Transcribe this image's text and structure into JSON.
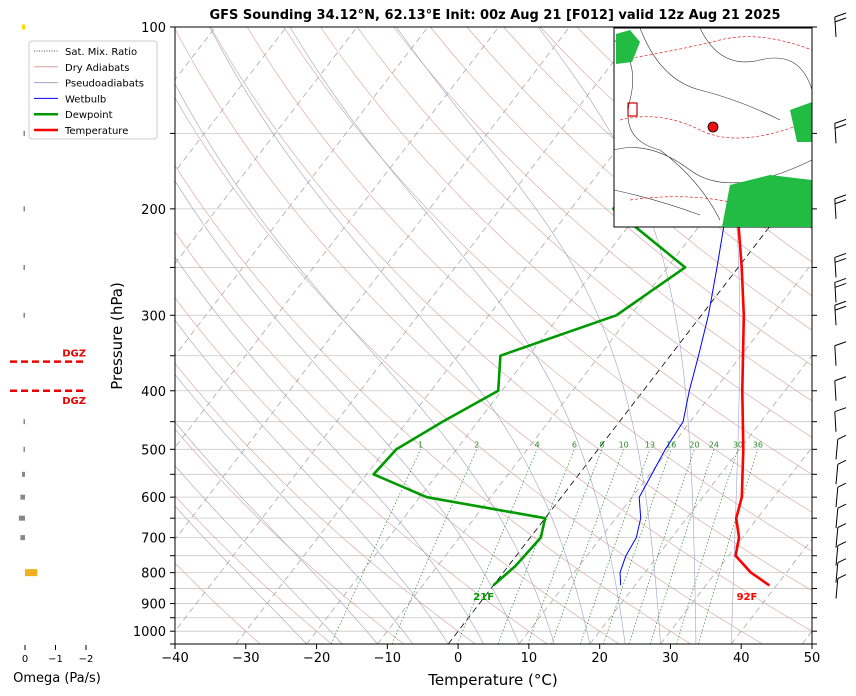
{
  "chart_data": {
    "type": "line",
    "title": "GFS Sounding 34.12°N, 62.13°E Init: 00z Aug 21 [F012] valid 12z Aug 21 2025",
    "xlabel": "Temperature (°C)",
    "ylabel": "Pressure (hPa)",
    "xlim": [
      -40,
      50
    ],
    "ylim": [
      1050,
      100
    ],
    "y_scale": "log",
    "grid": true,
    "legend_position": "top-left",
    "x_ticks": [
      "−40",
      "−30",
      "−20",
      "−10",
      "0",
      "10",
      "20",
      "30",
      "40",
      "50"
    ],
    "y_ticks": [
      {
        "p": 100,
        "label": "100"
      },
      {
        "p": 200,
        "label": "200"
      },
      {
        "p": 300,
        "label": "300"
      },
      {
        "p": 400,
        "label": "400"
      },
      {
        "p": 500,
        "label": "500"
      },
      {
        "p": 600,
        "label": "600"
      },
      {
        "p": 700,
        "label": "700"
      },
      {
        "p": 800,
        "label": "800"
      },
      {
        "p": 900,
        "label": "900"
      },
      {
        "p": 1000,
        "label": "1000"
      }
    ],
    "legend": [
      {
        "name": "Sat. Mix. Ratio",
        "color": "#555555",
        "style": "dotted"
      },
      {
        "name": "Dry Adiabats",
        "color": "#d4a0a0",
        "style": "solid"
      },
      {
        "name": "Pseudoadiabats",
        "color": "#a0a0c8",
        "style": "solid"
      },
      {
        "name": "Wetbulb",
        "color": "#0000ff",
        "style": "solid"
      },
      {
        "name": "Dewpoint",
        "color": "#009900",
        "style": "thick"
      },
      {
        "name": "Temperature",
        "color": "#ff0000",
        "style": "thick"
      }
    ],
    "series": [
      {
        "name": "Temperature",
        "color": "#ff0000",
        "points": [
          {
            "p": 840,
            "t": 39
          },
          {
            "p": 800,
            "t": 35
          },
          {
            "p": 750,
            "t": 31
          },
          {
            "p": 700,
            "t": 29.5
          },
          {
            "p": 650,
            "t": 27
          },
          {
            "p": 600,
            "t": 25.5
          },
          {
            "p": 500,
            "t": 20.5
          },
          {
            "p": 400,
            "t": 14
          },
          {
            "p": 300,
            "t": 6
          },
          {
            "p": 250,
            "t": 0.5
          },
          {
            "p": 200,
            "t": -6.5
          },
          {
            "p": 150,
            "t": -13
          },
          {
            "p": 100,
            "t": -20
          }
        ]
      },
      {
        "name": "Dewpoint",
        "color": "#009900",
        "points": [
          {
            "p": 840,
            "t": 0
          },
          {
            "p": 780,
            "t": 1
          },
          {
            "p": 700,
            "t": 1.5
          },
          {
            "p": 650,
            "t": 0
          },
          {
            "p": 600,
            "t": -19
          },
          {
            "p": 550,
            "t": -29
          },
          {
            "p": 500,
            "t": -28.5
          },
          {
            "p": 450,
            "t": -25
          },
          {
            "p": 400,
            "t": -20.5
          },
          {
            "p": 350,
            "t": -24
          },
          {
            "p": 300,
            "t": -12
          },
          {
            "p": 250,
            "t": -7.5
          },
          {
            "p": 200,
            "t": -24
          },
          {
            "p": 150,
            "t": -25
          },
          {
            "p": 100,
            "t": -13
          }
        ]
      },
      {
        "name": "Wetbulb",
        "color": "#0000ff",
        "points": [
          {
            "p": 840,
            "t": 18
          },
          {
            "p": 800,
            "t": 16.5
          },
          {
            "p": 750,
            "t": 15.5
          },
          {
            "p": 700,
            "t": 15
          },
          {
            "p": 650,
            "t": 13.5
          },
          {
            "p": 600,
            "t": 11
          },
          {
            "p": 500,
            "t": 9.5
          },
          {
            "p": 450,
            "t": 9
          },
          {
            "p": 400,
            "t": 6.5
          },
          {
            "p": 350,
            "t": 4
          },
          {
            "p": 300,
            "t": 1
          },
          {
            "p": 250,
            "t": -3
          },
          {
            "p": 200,
            "t": -8
          },
          {
            "p": 150,
            "t": -13.5
          }
        ]
      }
    ],
    "surface_labels": [
      {
        "text": "92F",
        "p": 875,
        "t": 37,
        "color": "#ff0000"
      },
      {
        "text": "21F",
        "p": 875,
        "t": -0.2,
        "color": "#009900"
      }
    ],
    "mixing_ratio_labels": [
      "1",
      "2",
      "4",
      "6",
      "8",
      "10",
      "13",
      "16",
      "20",
      "24",
      "30",
      "36"
    ],
    "mixing_ratio_values": [
      1,
      2,
      4,
      6,
      8,
      10,
      13,
      16,
      20,
      24,
      30,
      36
    ],
    "omega_panel": {
      "xlabel": "Omega (Pa/s)",
      "ticks": [
        "0",
        "−1",
        "−2"
      ],
      "bars": [
        {
          "p": 100,
          "value": 0.1,
          "color": "#ffd700"
        },
        {
          "p": 150,
          "value": 0.05,
          "color": "#888888"
        },
        {
          "p": 200,
          "value": 0.05,
          "color": "#888888"
        },
        {
          "p": 250,
          "value": 0.05,
          "color": "#888888"
        },
        {
          "p": 300,
          "value": 0.05,
          "color": "#888888"
        },
        {
          "p": 450,
          "value": 0.05,
          "color": "#888888"
        },
        {
          "p": 500,
          "value": 0.05,
          "color": "#888888"
        },
        {
          "p": 550,
          "value": 0.1,
          "color": "#888888"
        },
        {
          "p": 600,
          "value": 0.15,
          "color": "#888888"
        },
        {
          "p": 650,
          "value": 0.2,
          "color": "#888888"
        },
        {
          "p": 700,
          "value": 0.15,
          "color": "#888888"
        },
        {
          "p": 800,
          "value": -0.4,
          "color": "#f0b020"
        }
      ],
      "dgz": [
        {
          "label": "DGZ",
          "p": 358
        },
        {
          "label": "DGZ",
          "p": 400
        }
      ]
    },
    "wind_barbs": [
      {
        "p": 100
      },
      {
        "p": 150
      },
      {
        "p": 200
      },
      {
        "p": 250
      },
      {
        "p": 275
      },
      {
        "p": 300
      },
      {
        "p": 350
      },
      {
        "p": 400
      },
      {
        "p": 450
      },
      {
        "p": 500
      },
      {
        "p": 550
      },
      {
        "p": 600
      },
      {
        "p": 650
      },
      {
        "p": 700
      },
      {
        "p": 750
      },
      {
        "p": 800
      },
      {
        "p": 850
      }
    ]
  }
}
